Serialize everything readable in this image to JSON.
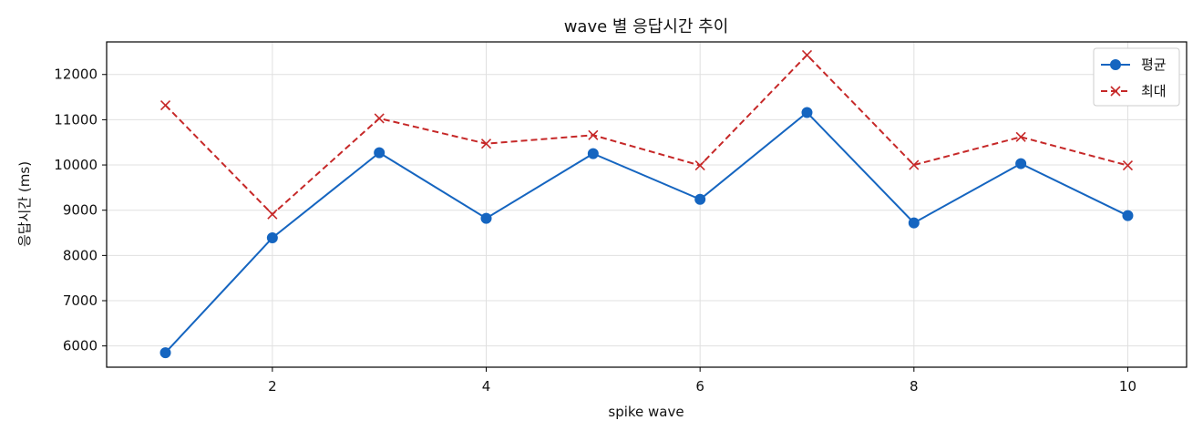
{
  "chart_data": {
    "type": "line",
    "title": "wave 별 응답시간 추이",
    "xlabel": "spike wave",
    "ylabel": "응답시간 (ms)",
    "x": [
      1,
      2,
      3,
      4,
      5,
      6,
      7,
      8,
      9,
      10
    ],
    "x_ticks": [
      2,
      4,
      6,
      8,
      10
    ],
    "y_ticks": [
      6000,
      7000,
      8000,
      9000,
      10000,
      11000,
      12000
    ],
    "xlim": [
      0.45,
      10.55
    ],
    "ylim": [
      5530,
      12720
    ],
    "grid": true,
    "legend_position": "top-right",
    "series": [
      {
        "name": "평균",
        "color": "#1565c0",
        "marker": "circle",
        "line_style": "solid",
        "values": [
          5850,
          8390,
          10270,
          8820,
          10250,
          9240,
          11160,
          8720,
          10030,
          8880
        ]
      },
      {
        "name": "최대",
        "color": "#c62828",
        "marker": "x",
        "line_style": "dashed",
        "values": [
          11320,
          8910,
          11030,
          10470,
          10660,
          9990,
          12430,
          10000,
          10620,
          9990
        ]
      }
    ]
  }
}
